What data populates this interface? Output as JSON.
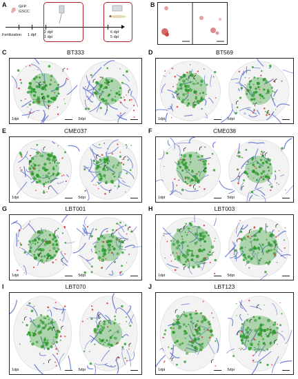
{
  "panel_a": {
    "label": "A",
    "cells_line1": "GFP",
    "cells_line2": "GSCC",
    "timeline": [
      {
        "line1": "Fertilization",
        "line2": ""
      },
      {
        "line1": "1 dpf",
        "line2": ""
      },
      {
        "line1": "2 dpf",
        "line2": "1 dpi"
      },
      {
        "line1": "6 dpf",
        "line2": "5 dpi"
      }
    ]
  },
  "panel_b": {
    "label": "B"
  },
  "panels": [
    {
      "label": "C",
      "title": "BT333",
      "left_tag": "1dpi",
      "right_tag": "5dpi"
    },
    {
      "label": "D",
      "title": "BT569",
      "left_tag": "1dpi",
      "right_tag": "5dpi"
    },
    {
      "label": "E",
      "title": "CME037",
      "left_tag": "1dpi",
      "right_tag": "5dpi"
    },
    {
      "label": "F",
      "title": "CME038",
      "left_tag": "1dpi",
      "right_tag": "5dpi"
    },
    {
      "label": "G",
      "title": "LBT001",
      "left_tag": "1dpi",
      "right_tag": "5dpi"
    },
    {
      "label": "H",
      "title": "LBT003",
      "left_tag": "1dpi",
      "right_tag": "5dpi"
    },
    {
      "label": "I",
      "title": "LBT070",
      "left_tag": "1dpi",
      "right_tag": "5dpi"
    },
    {
      "label": "J",
      "title": "LBT123",
      "left_tag": "1dpi",
      "right_tag": "5dpi"
    }
  ],
  "colors": {
    "tumor": "#2e9b2e",
    "vessel": "#4a5fc9",
    "macrophage": "#d63a3a",
    "frame": "#b22222"
  }
}
